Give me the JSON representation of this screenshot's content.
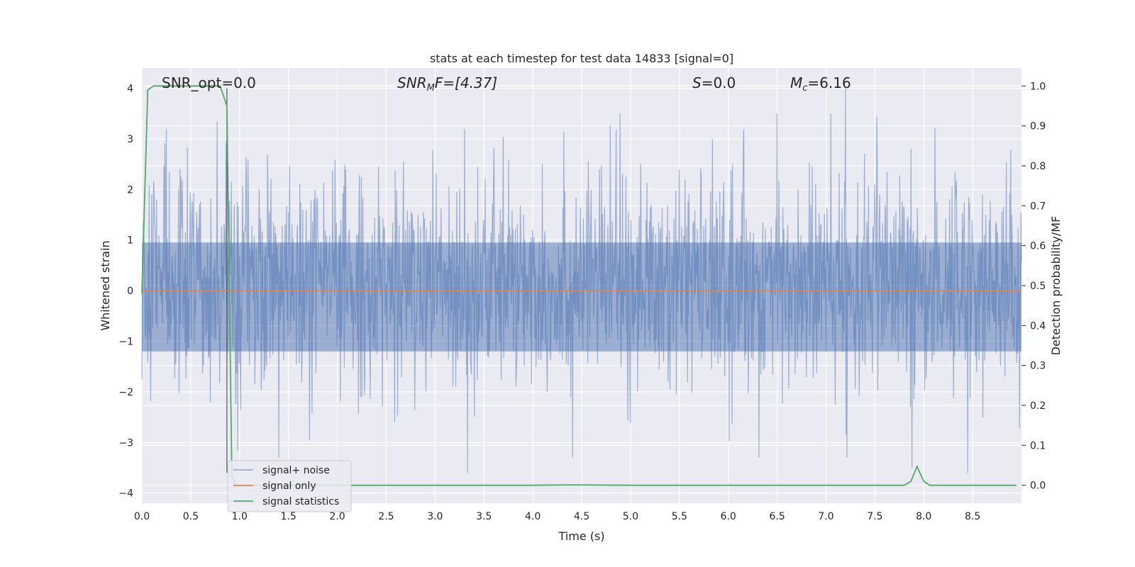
{
  "chart_data": {
    "type": "line",
    "title": "stats at each timestep for test data 14833 [signal=0]",
    "xlabel": "Time (s)",
    "ylabel": "Whitened strain",
    "y2label": "Detection probability/MF",
    "xlim": [
      0,
      9.0
    ],
    "ylim": [
      -4.2,
      4.4
    ],
    "y2lim": [
      -0.045,
      1.045
    ],
    "xticks": [
      0.0,
      0.5,
      1.0,
      1.5,
      2.0,
      2.5,
      3.0,
      3.5,
      4.0,
      4.5,
      5.0,
      5.5,
      6.0,
      6.5,
      7.0,
      7.5,
      8.0,
      8.5
    ],
    "yticks": [
      4,
      3,
      2,
      1,
      0,
      -1,
      -2,
      -3,
      -4
    ],
    "ytick_labels": [
      "4",
      "3",
      "2",
      "1",
      "0",
      "−1",
      "−2",
      "−3",
      "−4"
    ],
    "y2ticks": [
      1.0,
      0.9,
      0.8,
      0.7,
      0.6,
      0.5,
      0.4,
      0.3,
      0.2,
      0.1,
      0.0
    ],
    "grid": true,
    "legend_position": "lower-left",
    "annotations": {
      "snr_opt": "SNR_opt=0.0",
      "snr_mf_main": "SNR",
      "snr_mf_sub": "M",
      "snr_mf_tail": "F=[4.37]",
      "s_main": "S",
      "s_tail": "=0.0",
      "mc_main": "M",
      "mc_sub": "c",
      "mc_tail": "=6.16"
    },
    "series": [
      {
        "name": "signal+ noise",
        "color": "#4c72b0",
        "axis": "left",
        "noise_envelope": {
          "typical_band": [
            -1.4,
            1.7
          ],
          "peak_max": 4.0,
          "peak_min": -3.6,
          "peak_max_at": 7.2
        },
        "highlight_peaks": [
          [
            0.25,
            3.2
          ],
          [
            0.77,
            3.35
          ],
          [
            3.3,
            3.2
          ],
          [
            7.2,
            4.0
          ],
          [
            1.4,
            -3.3
          ],
          [
            3.33,
            -3.6
          ],
          [
            7.88,
            -3.5
          ],
          [
            8.45,
            -3.6
          ]
        ]
      },
      {
        "name": "signal only",
        "color": "#dd8452",
        "axis": "left",
        "x": [
          0.0,
          9.0
        ],
        "y": [
          0.0,
          0.0
        ]
      },
      {
        "name": "signal statistics",
        "color": "#55a868",
        "axis": "right",
        "x": [
          0.0,
          0.06,
          0.12,
          0.5,
          0.8,
          0.87,
          0.92,
          0.96,
          1.0,
          1.5,
          2.0,
          3.0,
          4.0,
          4.4,
          5.0,
          6.0,
          7.0,
          7.8,
          7.87,
          7.93,
          8.0,
          8.06,
          8.2,
          8.5,
          8.95
        ],
        "y": [
          0.48,
          0.99,
          1.0,
          1.0,
          1.0,
          0.95,
          0.03,
          0.0,
          0.0,
          0.0,
          0.0,
          0.0,
          0.0,
          0.001,
          0.0,
          0.0,
          0.0,
          0.0,
          0.01,
          0.047,
          0.01,
          0.0,
          0.0,
          0.0,
          0.0
        ]
      }
    ],
    "vertical_line": {
      "x": 0.87,
      "y_top": 4.0,
      "y_bottom": -3.6,
      "color": "#555555"
    }
  }
}
